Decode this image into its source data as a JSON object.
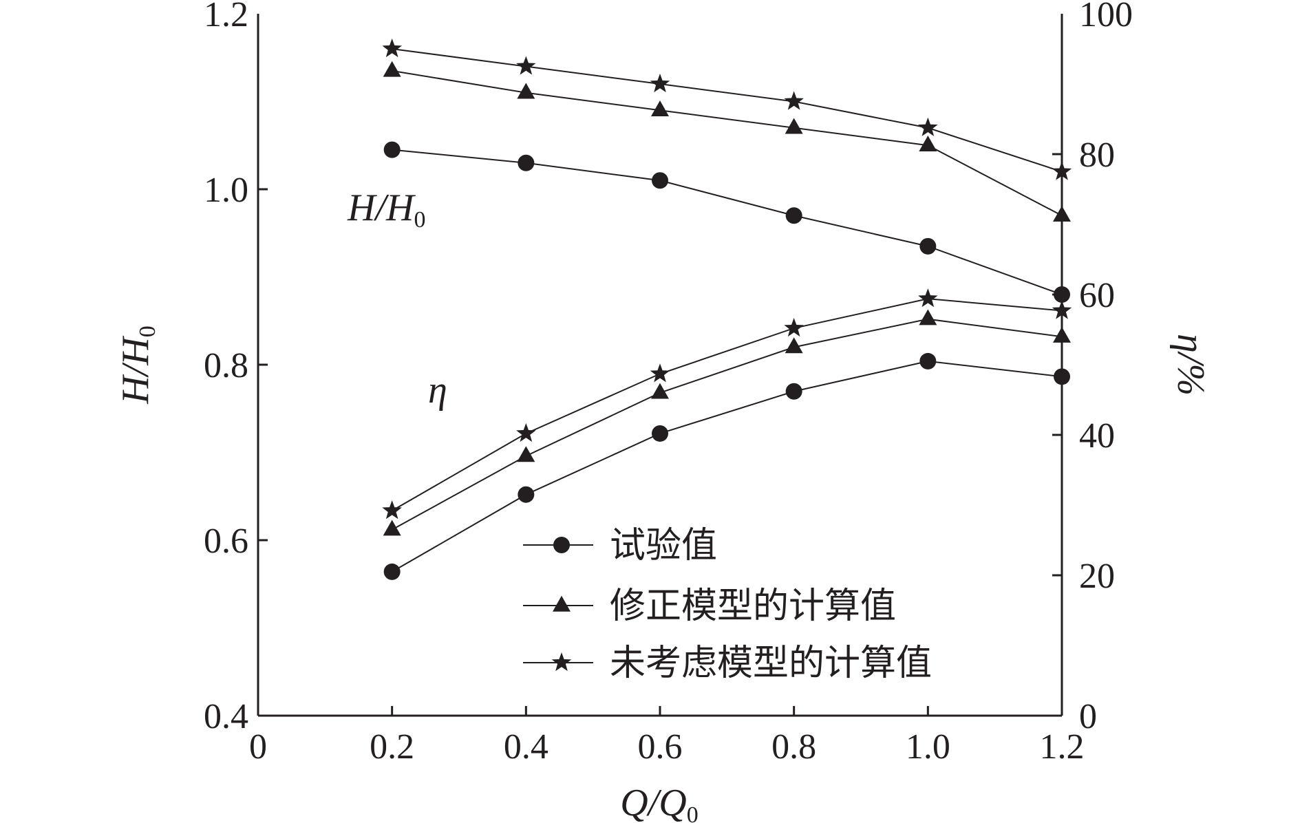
{
  "chart_data": {
    "type": "line",
    "xlabel": "Q/Q0",
    "ylabel": "H/H0",
    "y2label": "η/%",
    "xlim": [
      0,
      1.2
    ],
    "ylim": [
      0.4,
      1.2
    ],
    "y2lim": [
      0,
      100
    ],
    "xticks": [
      "0",
      "0.2",
      "0.4",
      "0.6",
      "0.8",
      "1.0",
      "1.2"
    ],
    "yticks": [
      "0.4",
      "0.6",
      "0.8",
      "1.0",
      "1.2"
    ],
    "y2ticks": [
      "0",
      "20",
      "40",
      "60",
      "80",
      "100"
    ],
    "grid": false,
    "legend_position": "bottom-center",
    "x": [
      0.2,
      0.4,
      0.6,
      0.8,
      1.0,
      1.2
    ],
    "annotations": {
      "head": "H/H0",
      "eff": "η"
    },
    "series": [
      {
        "name": "试验值",
        "marker": "circle",
        "group": "head",
        "axis": "left",
        "values": [
          1.045,
          1.03,
          1.01,
          0.97,
          0.935,
          0.88
        ]
      },
      {
        "name": "修正模型的计算值",
        "marker": "triangle",
        "group": "head",
        "axis": "left",
        "values": [
          1.135,
          1.11,
          1.09,
          1.07,
          1.05,
          0.97
        ]
      },
      {
        "name": "未考虑模型的计算值",
        "marker": "star",
        "group": "head",
        "axis": "left",
        "values": [
          1.16,
          1.14,
          1.12,
          1.1,
          1.07,
          1.02
        ]
      },
      {
        "name": "试验值",
        "marker": "circle",
        "group": "eff",
        "axis": "right",
        "values": [
          20.5,
          31.5,
          40.2,
          46.2,
          50.5,
          48.3
        ]
      },
      {
        "name": "修正模型的计算值",
        "marker": "triangle",
        "group": "eff",
        "axis": "right",
        "values": [
          26.5,
          37,
          46,
          52.5,
          56.5,
          54
        ]
      },
      {
        "name": "未考虑模型的计算值",
        "marker": "star",
        "group": "eff",
        "axis": "right",
        "values": [
          29.2,
          40.2,
          48.7,
          55.2,
          59.4,
          57.7
        ]
      }
    ],
    "legend": [
      "试验值",
      "修正模型的计算值",
      "未考虑模型的计算值"
    ],
    "colors": {
      "ink": "#231f20"
    }
  }
}
